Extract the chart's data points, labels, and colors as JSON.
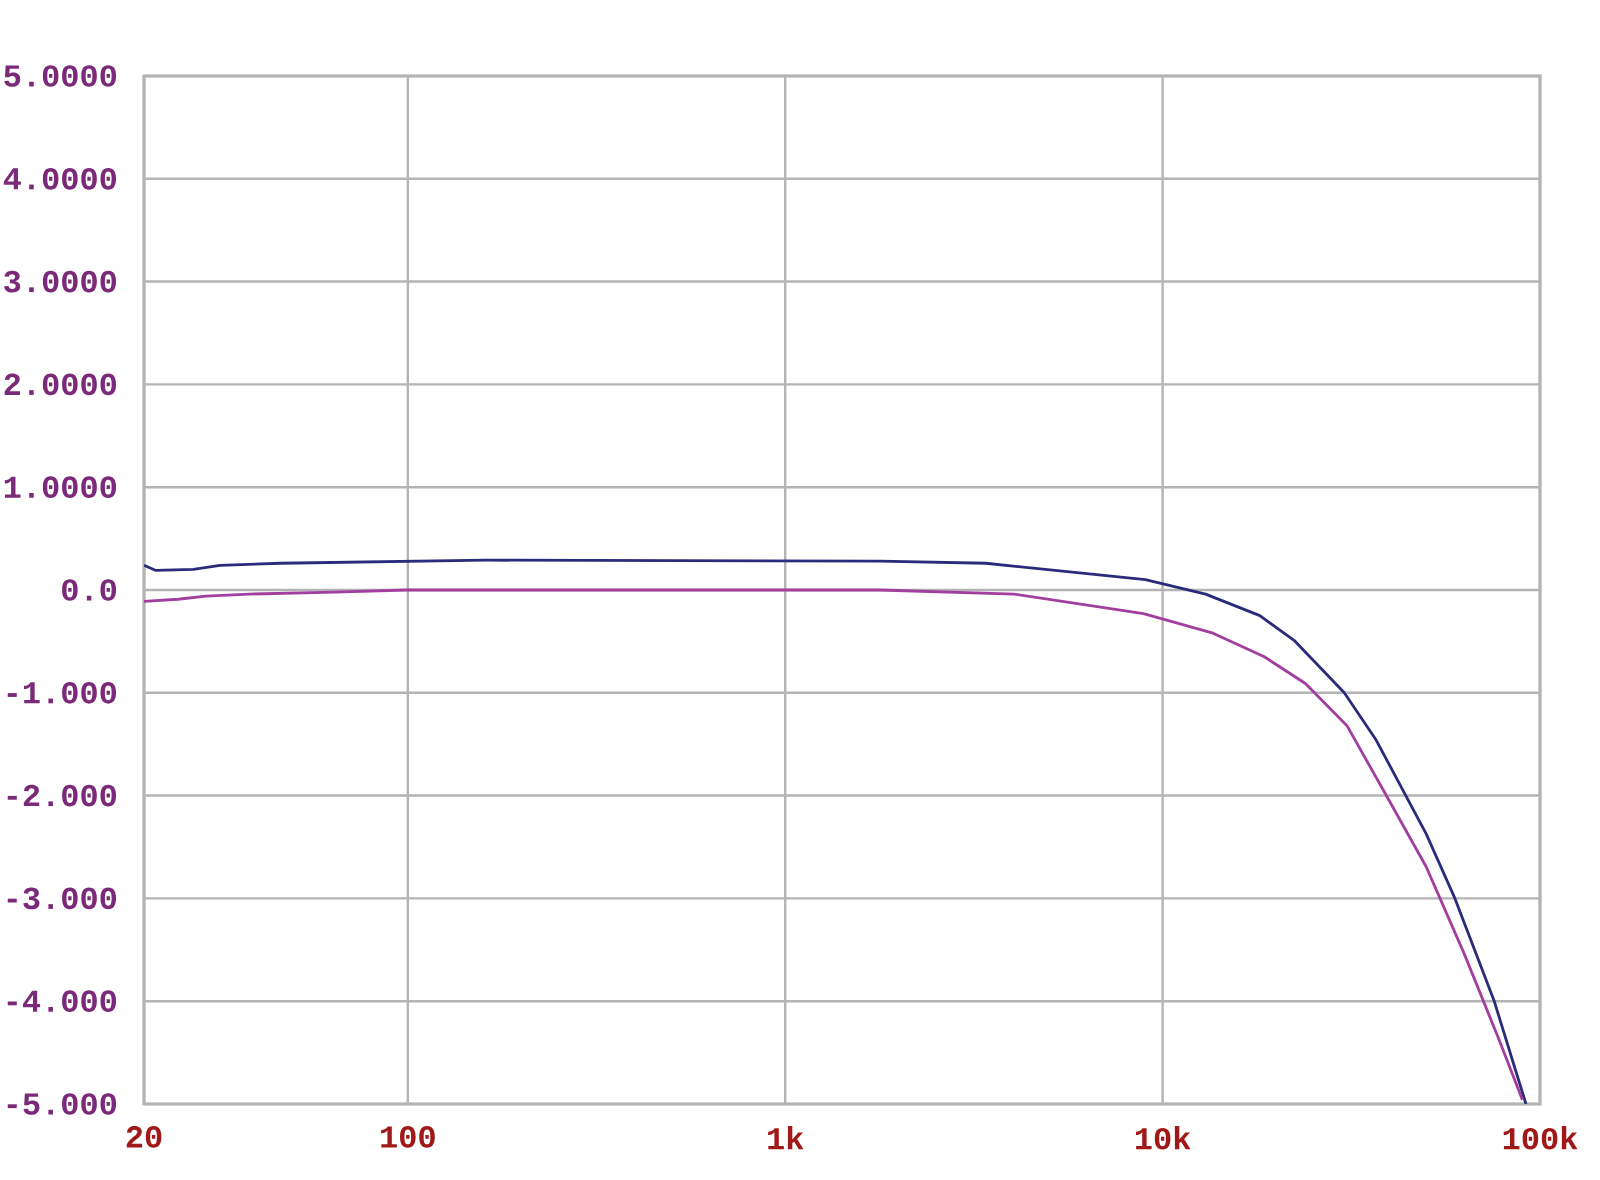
{
  "chart_data": {
    "type": "line",
    "log": "x",
    "grid": true,
    "marker": "none",
    "line_style": "solid",
    "xlim": [
      20,
      100000
    ],
    "ylim": [
      -5,
      5
    ],
    "xticks": [
      20,
      100,
      {
        "value": 1000,
        "label": "1k"
      },
      {
        "value": 10000,
        "label": "10k"
      },
      {
        "value": 100000,
        "label": "100k"
      }
    ],
    "yticks": [
      {
        "value": -5,
        "label": "-5.000"
      },
      {
        "value": -4,
        "label": "-4.000"
      },
      {
        "value": -3,
        "label": "-3.000"
      },
      {
        "value": -2,
        "label": "-2.000"
      },
      {
        "value": -1,
        "label": "-1.000"
      },
      {
        "value": 0,
        "label": "0.0"
      },
      {
        "value": 1,
        "label": "1.0000"
      },
      {
        "value": 2,
        "label": "2.0000"
      },
      {
        "value": 3,
        "label": "3.0000"
      },
      {
        "value": 4,
        "label": "4.0000"
      },
      {
        "value": 5,
        "label": "5.0000"
      }
    ],
    "series": [
      {
        "color": "#2b2b7c",
        "x": [
          20,
          21.5,
          27,
          31.8,
          46,
          161,
          1780,
          3400,
          9000,
          13000,
          18100,
          22300,
          30300,
          36800,
          49900,
          59200,
          75500,
          91800
        ],
        "values": [
          0.24,
          0.19,
          0.2,
          0.24,
          0.26,
          0.29,
          0.28,
          0.26,
          0.1,
          -0.04,
          -0.25,
          -0.49,
          -1.0,
          -1.46,
          -2.37,
          -2.98,
          -3.99,
          -5.0
        ]
      },
      {
        "color": "#a23e9e",
        "x": [
          20,
          24.6,
          29.2,
          38,
          64,
          99,
          1780,
          4040,
          8900,
          13600,
          18600,
          23900,
          30800,
          38900,
          49900,
          63000,
          78000,
          89800
        ],
        "values": [
          -0.11,
          -0.09,
          -0.06,
          -0.04,
          -0.02,
          0.0,
          0.0,
          -0.04,
          -0.23,
          -0.42,
          -0.65,
          -0.91,
          -1.32,
          -1.98,
          -2.69,
          -3.54,
          -4.38,
          -4.96
        ]
      }
    ]
  }
}
